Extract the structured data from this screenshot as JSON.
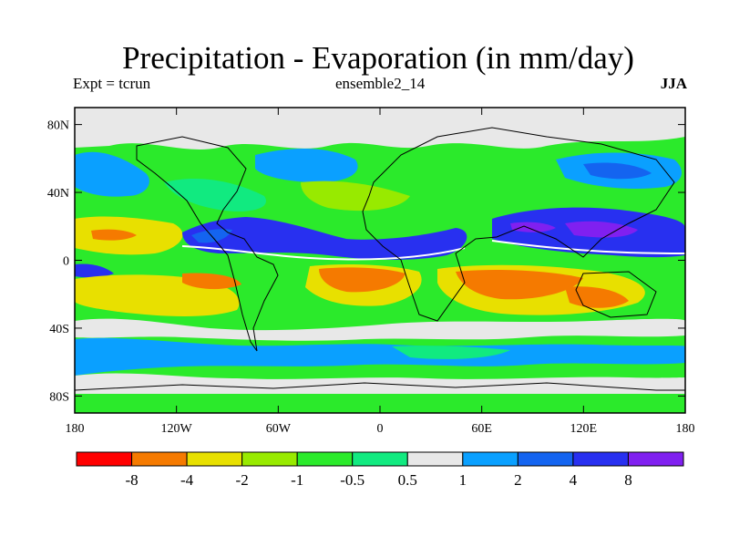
{
  "title": "Precipitation - Evaporation (in mm/day)",
  "left_label": "Expt = tcrun",
  "center_label": "ensemble2_14",
  "right_label": "JJA",
  "lat_ticks": [
    "80N",
    "40N",
    "0",
    "40S",
    "80S"
  ],
  "lat_values": [
    80,
    40,
    0,
    -40,
    -80
  ],
  "lon_ticks": [
    "180",
    "120W",
    "60W",
    "0",
    "60E",
    "120E",
    "180"
  ],
  "lon_values": [
    -180,
    -120,
    -60,
    0,
    60,
    120,
    180
  ],
  "colorbar": {
    "colors": [
      "#ff0000",
      "#f57a00",
      "#e8e000",
      "#98ea00",
      "#2bea2b",
      "#11ea80",
      "#e8e8e8",
      "#0aa0ff",
      "#1464f0",
      "#2830f0",
      "#8020f0"
    ],
    "labels": [
      "-8",
      "-4",
      "-2",
      "-1",
      "-0.5",
      "0.5",
      "1",
      "2",
      "4",
      "8"
    ]
  }
}
